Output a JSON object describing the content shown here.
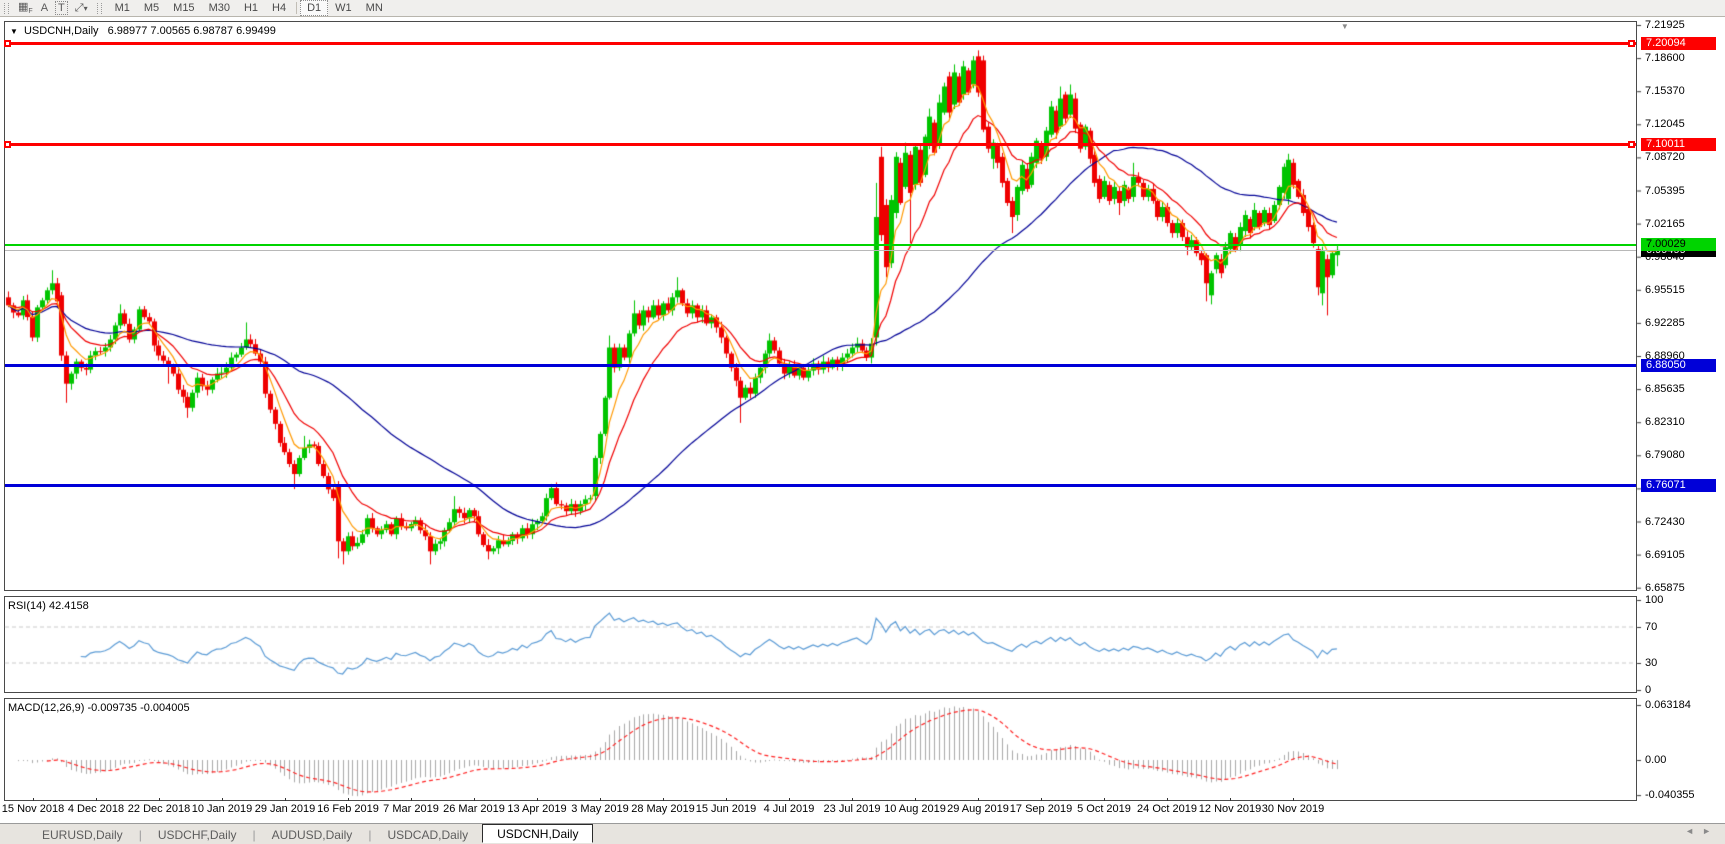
{
  "toolbar": {
    "grid_icon_glyph": "▦",
    "grid_icon_sub": "F",
    "a_icon_glyph": "A",
    "t_icon_glyph": "T",
    "cursor_icon_glyph": "⤢",
    "cursor_caret": "▾",
    "timeframes": [
      "M1",
      "M5",
      "M15",
      "M30",
      "H1",
      "H4",
      "D1",
      "W1",
      "MN"
    ],
    "active_timeframe": "D1"
  },
  "chart": {
    "collapse_glyph": "▼",
    "symbol": "USDCNH,Daily",
    "ohlc": "6.98977 7.00565 6.98787 6.99499",
    "price_ticks": [
      "7.21925",
      "7.18600",
      "7.15370",
      "7.12045",
      "7.08720",
      "7.05395",
      "7.02165",
      "6.98640",
      "6.95515",
      "6.92285",
      "6.88960",
      "6.85635",
      "6.82310",
      "6.79080",
      "6.75755",
      "6.72430",
      "6.69105",
      "6.65875"
    ],
    "levels": [
      {
        "value": "7.20094",
        "price": 7.20094,
        "color": "#fe0000",
        "text_color": "#ffffff",
        "thickness": 3,
        "handles": true
      },
      {
        "value": "7.10011",
        "price": 7.10011,
        "color": "#fe0000",
        "text_color": "#ffffff",
        "thickness": 3,
        "handles": true
      },
      {
        "value": "7.00029",
        "price": 7.00029,
        "color": "#00d400",
        "text_color": "#000000",
        "thickness": 2,
        "handles": false
      },
      {
        "value": "6.88050",
        "price": 6.8805,
        "color": "#0000d8",
        "text_color": "#ffffff",
        "thickness": 3,
        "handles": false
      },
      {
        "value": "6.76071",
        "price": 6.76071,
        "color": "#0000d8",
        "text_color": "#ffffff",
        "thickness": 3,
        "handles": false
      }
    ],
    "current_price": {
      "value": "6.99499",
      "price": 6.99499,
      "bg": "#000000",
      "text_color": "#ffffff",
      "line_color": "#b8b8b8"
    },
    "dates": [
      "15 Nov 2018",
      "4 Dec 2018",
      "22 Dec 2018",
      "10 Jan 2019",
      "29 Jan 2019",
      "16 Feb 2019",
      "7 Mar 2019",
      "26 Mar 2019",
      "13 Apr 2019",
      "3 May 2019",
      "28 May 2019",
      "15 Jun 2019",
      "4 Jul 2019",
      "23 Jul 2019",
      "10 Aug 2019",
      "29 Aug 2019",
      "17 Sep 2019",
      "5 Oct 2019",
      "24 Oct 2019",
      "12 Nov 2019",
      "30 Nov 2019"
    ],
    "shift_marker_glyph": "▼"
  },
  "rsi": {
    "label": "RSI(14) 42.4158",
    "ticks": [
      {
        "v": 100,
        "t": "100"
      },
      {
        "v": 70,
        "t": "70"
      },
      {
        "v": 30,
        "t": "30"
      },
      {
        "v": 0,
        "t": "0"
      }
    ],
    "dashed_levels": [
      70,
      30
    ],
    "line_color": "#5b9bd5"
  },
  "macd": {
    "label": "MACD(12,26,9) -0.009735 -0.004005",
    "ticks": [
      {
        "v": 0.063184,
        "t": "0.063184"
      },
      {
        "v": 0,
        "t": "0.00"
      },
      {
        "v": -0.040355,
        "t": "-0.040355"
      }
    ],
    "hist_color": "#a8a8a8",
    "signal_color": "#ff2222"
  },
  "tabs": {
    "items": [
      {
        "label": "EURUSD,Daily",
        "active": false
      },
      {
        "label": "USDCHF,Daily",
        "active": false
      },
      {
        "label": "AUDUSD,Daily",
        "active": false
      },
      {
        "label": "USDCAD,Daily",
        "active": false
      },
      {
        "label": "USDCNH,Daily",
        "active": true
      }
    ]
  },
  "nav": {
    "left_arrow": "◄",
    "right_arrow": "►"
  },
  "chart_data": {
    "type": "candlestick",
    "symbol": "USDCNH",
    "timeframe": "Daily",
    "open": 6.98977,
    "high": 7.00565,
    "low": 6.98787,
    "close": 6.99499,
    "y_range": [
      6.65875,
      7.21925
    ],
    "x_range": [
      "15 Nov 2018",
      "13 Dec 2019"
    ],
    "horizontal_levels": [
      7.20094,
      7.10011,
      7.00029,
      6.8805,
      6.76071
    ],
    "indicators": {
      "rsi": {
        "period": 14,
        "value": 42.4158,
        "range": [
          0,
          100
        ],
        "guides": [
          70,
          30
        ]
      },
      "macd": {
        "fast": 12,
        "slow": 26,
        "signal": 9,
        "value": -0.009735,
        "signal_value": -0.004005,
        "axis_max": 0.063184,
        "axis_min": -0.040355
      }
    },
    "ma_periods": {
      "fast": 6,
      "mid": 14,
      "slow": 50
    },
    "ma_colors": {
      "fast": "#ff9900",
      "mid": "#f00000",
      "slow": "#000096"
    },
    "candle_colors": {
      "up": "#00c400",
      "down": "#ef0000"
    },
    "anchors": [
      [
        0,
        6.94,
        6.948
      ],
      [
        2,
        6.93
      ],
      [
        3,
        6.945
      ],
      [
        5,
        6.908
      ],
      [
        6,
        6.938
      ],
      [
        8,
        6.955
      ],
      [
        9,
        6.962,
        null,
        null,
        6.975
      ],
      [
        10,
        6.944
      ],
      [
        11,
        6.89,
        6.95
      ],
      [
        12,
        6.862,
        null,
        6.843
      ],
      [
        13,
        6.872
      ],
      [
        14,
        6.884
      ],
      [
        16,
        6.876
      ],
      [
        17,
        6.89
      ],
      [
        19,
        6.894
      ],
      [
        21,
        6.906
      ],
      [
        22,
        6.92
      ],
      [
        23,
        6.932,
        null,
        null,
        6.941
      ],
      [
        25,
        6.906
      ],
      [
        26,
        6.916
      ],
      [
        27,
        6.936
      ],
      [
        29,
        6.924
      ],
      [
        30,
        6.9
      ],
      [
        31,
        6.89
      ],
      [
        33,
        6.88,
        null,
        6.862
      ],
      [
        34,
        6.872
      ],
      [
        35,
        6.856
      ],
      [
        37,
        6.838,
        null,
        6.828
      ],
      [
        38,
        6.853
      ],
      [
        39,
        6.868
      ],
      [
        41,
        6.856
      ],
      [
        42,
        6.866
      ],
      [
        44,
        6.873
      ],
      [
        45,
        6.878
      ],
      [
        46,
        6.888
      ],
      [
        48,
        6.898
      ],
      [
        49,
        6.906,
        null,
        null,
        6.923
      ],
      [
        51,
        6.892
      ],
      [
        52,
        6.884
      ],
      [
        53,
        6.852
      ],
      [
        55,
        6.822
      ],
      [
        56,
        6.803
      ],
      [
        58,
        6.782
      ],
      [
        59,
        6.772,
        null,
        6.757
      ],
      [
        60,
        6.788
      ],
      [
        61,
        6.798,
        null,
        null,
        6.81
      ],
      [
        63,
        6.8
      ],
      [
        64,
        6.782
      ],
      [
        65,
        6.77
      ],
      [
        67,
        6.748
      ],
      [
        68,
        6.705,
        6.76,
        6.688
      ],
      [
        69,
        6.695,
        null,
        6.682
      ],
      [
        70,
        6.71
      ],
      [
        71,
        6.7
      ],
      [
        73,
        6.712
      ],
      [
        74,
        6.728
      ],
      [
        75,
        6.718
      ],
      [
        76,
        6.712
      ],
      [
        78,
        6.722
      ],
      [
        79,
        6.712
      ],
      [
        80,
        6.728
      ],
      [
        81,
        6.72
      ],
      [
        82,
        6.718
      ],
      [
        84,
        6.726
      ],
      [
        85,
        6.716
      ],
      [
        86,
        6.71
      ],
      [
        87,
        6.695,
        null,
        6.682
      ],
      [
        89,
        6.705
      ],
      [
        90,
        6.716
      ],
      [
        91,
        6.724
      ],
      [
        92,
        6.737,
        null,
        null,
        6.75
      ],
      [
        94,
        6.728
      ],
      [
        95,
        6.736
      ],
      [
        96,
        6.73
      ],
      [
        97,
        6.712
      ],
      [
        99,
        6.695,
        null,
        6.687
      ],
      [
        100,
        6.698
      ],
      [
        101,
        6.706
      ],
      [
        102,
        6.702
      ],
      [
        104,
        6.712
      ],
      [
        105,
        6.708
      ],
      [
        106,
        6.718
      ],
      [
        107,
        6.712
      ],
      [
        108,
        6.722
      ],
      [
        110,
        6.73
      ],
      [
        111,
        6.748
      ],
      [
        112,
        6.758,
        null,
        null,
        6.762
      ],
      [
        113,
        6.742
      ],
      [
        115,
        6.735
      ],
      [
        116,
        6.742
      ],
      [
        117,
        6.735
      ],
      [
        118,
        6.742
      ],
      [
        120,
        6.748
      ],
      [
        121,
        6.788,
        6.75
      ],
      [
        122,
        6.812
      ],
      [
        123,
        6.848
      ],
      [
        124,
        6.898,
        null,
        null,
        6.91
      ],
      [
        125,
        6.878
      ],
      [
        126,
        6.898
      ],
      [
        127,
        6.888
      ],
      [
        128,
        6.912
      ],
      [
        129,
        6.932,
        null,
        null,
        6.945
      ],
      [
        130,
        6.92
      ],
      [
        131,
        6.935
      ],
      [
        132,
        6.928
      ],
      [
        133,
        6.94
      ],
      [
        134,
        6.93
      ],
      [
        135,
        6.942
      ],
      [
        136,
        6.935
      ],
      [
        137,
        6.948
      ],
      [
        138,
        6.955,
        null,
        null,
        6.968
      ],
      [
        139,
        6.942
      ],
      [
        140,
        6.932
      ],
      [
        141,
        6.94
      ],
      [
        142,
        6.928
      ],
      [
        143,
        6.935
      ],
      [
        144,
        6.922
      ],
      [
        145,
        6.928
      ],
      [
        146,
        6.918
      ],
      [
        147,
        6.908
      ],
      [
        148,
        6.892
      ],
      [
        149,
        6.878
      ],
      [
        150,
        6.865
      ],
      [
        151,
        6.848,
        null,
        6.823
      ],
      [
        152,
        6.858
      ],
      [
        153,
        6.852
      ],
      [
        154,
        6.868
      ],
      [
        155,
        6.878
      ],
      [
        156,
        6.892
      ],
      [
        157,
        6.905,
        null,
        null,
        6.912
      ],
      [
        158,
        6.895
      ],
      [
        159,
        6.882
      ],
      [
        160,
        6.872
      ],
      [
        161,
        6.88
      ],
      [
        162,
        6.87
      ],
      [
        163,
        6.878
      ],
      [
        164,
        6.868
      ],
      [
        165,
        6.875
      ],
      [
        166,
        6.882
      ],
      [
        167,
        6.876
      ],
      [
        168,
        6.884
      ],
      [
        169,
        6.878
      ],
      [
        170,
        6.886
      ],
      [
        171,
        6.88
      ],
      [
        172,
        6.888
      ],
      [
        173,
        6.892
      ],
      [
        174,
        6.898
      ],
      [
        175,
        6.902
      ],
      [
        176,
        6.895
      ],
      [
        177,
        6.888
      ],
      [
        178,
        6.902
      ],
      [
        179,
        7.028,
        6.908,
        6.9,
        7.062
      ],
      [
        180,
        7.01,
        7.088,
        null,
        7.098
      ],
      [
        181,
        6.978,
        7.04,
        6.968
      ],
      [
        182,
        7.045,
        6.982
      ],
      [
        183,
        7.088,
        7.032
      ],
      [
        184,
        7.042,
        7.082
      ],
      [
        185,
        7.092,
        7.058,
        null,
        7.102
      ],
      [
        186,
        7.052,
        7.09,
        7.002
      ],
      [
        187,
        7.098,
        7.06
      ],
      [
        188,
        7.062,
        7.095
      ],
      [
        189,
        7.108,
        7.07
      ],
      [
        190,
        7.128,
        7.1,
        null,
        7.136
      ],
      [
        191,
        7.092,
        7.122
      ],
      [
        192,
        7.142,
        7.1,
        null,
        7.15
      ],
      [
        193,
        7.158,
        7.132
      ],
      [
        194,
        7.132,
        7.168
      ],
      [
        195,
        7.172,
        7.14,
        null,
        7.18
      ],
      [
        196,
        7.142,
        7.168
      ],
      [
        197,
        7.178,
        7.15
      ],
      [
        198,
        7.152,
        7.174
      ],
      [
        199,
        7.184,
        7.16
      ],
      [
        200,
        7.152,
        7.188,
        null,
        7.194
      ],
      [
        201,
        7.115,
        7.184
      ],
      [
        202,
        7.096,
        7.118
      ],
      [
        203,
        7.102,
        7.086,
        7.076
      ],
      [
        204,
        7.082,
        7.1
      ],
      [
        205,
        7.062,
        7.088
      ],
      [
        206,
        7.042,
        7.064
      ],
      [
        207,
        7.028,
        7.044,
        7.012
      ],
      [
        208,
        7.058,
        7.03
      ],
      [
        209,
        7.08,
        7.054
      ],
      [
        210,
        7.056,
        7.076
      ],
      [
        211,
        7.088,
        7.06
      ],
      [
        212,
        7.104,
        7.082
      ],
      [
        213,
        7.086,
        7.1
      ],
      [
        214,
        7.114,
        7.088
      ],
      [
        215,
        7.138,
        7.11
      ],
      [
        216,
        7.112,
        7.134
      ],
      [
        217,
        7.146,
        7.118,
        null,
        7.158
      ],
      [
        218,
        7.126,
        7.15
      ],
      [
        219,
        7.15,
        7.13,
        null,
        7.16
      ],
      [
        220,
        7.116,
        7.146
      ],
      [
        221,
        7.096,
        7.12
      ],
      [
        222,
        7.118,
        7.098
      ],
      [
        223,
        7.086,
        7.114
      ],
      [
        224,
        7.062,
        7.09
      ],
      [
        225,
        7.046,
        7.066
      ],
      [
        226,
        7.064,
        7.048
      ],
      [
        227,
        7.044,
        7.06
      ],
      [
        228,
        7.058,
        7.046
      ],
      [
        229,
        7.042,
        7.054,
        7.03
      ],
      [
        230,
        7.06,
        7.044
      ],
      [
        231,
        7.046,
        7.056
      ],
      [
        232,
        7.068,
        7.048,
        null,
        7.082
      ],
      [
        233,
        7.062
      ],
      [
        234,
        7.048
      ],
      [
        235,
        7.056
      ],
      [
        236,
        7.044
      ],
      [
        237,
        7.028
      ],
      [
        238,
        7.038
      ],
      [
        239,
        7.022
      ],
      [
        240,
        7.012
      ],
      [
        241,
        7.022
      ],
      [
        242,
        7.008
      ],
      [
        243,
        6.998,
        null,
        6.99
      ],
      [
        244,
        7.005
      ],
      [
        245,
        6.992
      ],
      [
        246,
        6.985
      ],
      [
        247,
        6.962,
        6.99,
        6.944
      ],
      [
        248,
        6.972,
        6.95,
        6.941
      ],
      [
        249,
        6.99,
        6.976
      ],
      [
        250,
        6.972,
        6.986
      ],
      [
        251,
        6.998,
        6.98
      ],
      [
        252,
        7.012,
        6.996
      ],
      [
        253,
        6.995,
        7.008
      ],
      [
        254,
        7.018,
        7.0
      ],
      [
        255,
        7.03,
        7.014
      ],
      [
        256,
        7.012,
        7.026
      ],
      [
        257,
        7.035,
        7.018,
        null,
        7.042
      ],
      [
        258,
        7.018,
        7.032
      ],
      [
        259,
        7.035,
        7.022
      ],
      [
        260,
        7.02,
        7.032
      ],
      [
        261,
        7.04,
        7.024
      ],
      [
        262,
        7.058,
        7.04
      ],
      [
        263,
        7.078,
        7.052
      ],
      [
        264,
        7.085,
        7.046,
        null,
        7.091
      ],
      [
        265,
        7.06,
        7.082
      ],
      [
        266,
        7.048,
        7.064
      ],
      [
        267,
        7.032,
        7.05
      ],
      [
        268,
        7.018,
        7.036
      ],
      [
        269,
        7.002,
        7.02
      ],
      [
        270,
        6.958,
        6.996,
        6.95
      ],
      [
        271,
        6.994,
        6.952,
        6.94
      ],
      [
        272,
        6.968,
        6.986,
        6.93
      ],
      [
        273,
        6.992,
        6.97
      ],
      [
        274,
        6.995,
        6.99,
        6.979
      ]
    ]
  }
}
